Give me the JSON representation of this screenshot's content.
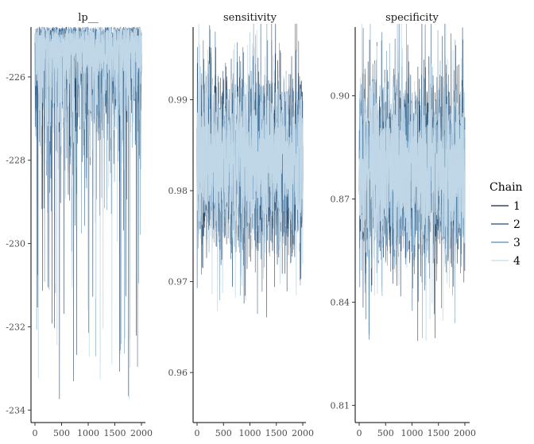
{
  "chart_data": [
    {
      "type": "line",
      "title": "lp__",
      "x_ticks": [
        0,
        500,
        1000,
        1500,
        2000
      ],
      "xlim": [
        0,
        2000
      ],
      "y_ticks": [
        -226,
        -228,
        -230,
        -232,
        -234
      ],
      "ylim": [
        -234.3,
        -224.8
      ],
      "trace": {
        "upper": -224.8,
        "center": -225.6,
        "spread": 0.7,
        "lower_tail": -233.8
      },
      "series": [
        {
          "name": "1",
          "color": "#0b2447"
        },
        {
          "name": "2",
          "color": "#1f4e79"
        },
        {
          "name": "3",
          "color": "#5b8bb0"
        },
        {
          "name": "4",
          "color": "#c6dbea"
        }
      ]
    },
    {
      "type": "line",
      "title": "sensitivity",
      "x_ticks": [
        0,
        500,
        1000,
        1500,
        2000
      ],
      "xlim": [
        0,
        2000
      ],
      "y_ticks": [
        0.99,
        0.98,
        0.97,
        0.96
      ],
      "y_tick_labels": [
        "0.99",
        "0.98",
        "0.97",
        "0.96"
      ],
      "ylim": [
        0.9545,
        0.998
      ],
      "trace": {
        "center": 0.9835,
        "spread": 0.0045,
        "upper_tail": 0.9975,
        "lower_tail": 0.9553
      },
      "series": [
        {
          "name": "1",
          "color": "#0b2447"
        },
        {
          "name": "2",
          "color": "#1f4e79"
        },
        {
          "name": "3",
          "color": "#5b8bb0"
        },
        {
          "name": "4",
          "color": "#c6dbea"
        }
      ]
    },
    {
      "type": "line",
      "title": "specificity",
      "x_ticks": [
        0,
        500,
        1000,
        1500,
        2000
      ],
      "xlim": [
        0,
        2000
      ],
      "y_ticks": [
        0.9,
        0.87,
        0.84,
        0.81
      ],
      "y_tick_labels": [
        "0.90",
        "0.87",
        "0.84",
        "0.81"
      ],
      "ylim": [
        0.805,
        0.92
      ],
      "trace": {
        "center": 0.8785,
        "spread": 0.0125,
        "upper_tail": 0.917,
        "lower_tail": 0.8105
      },
      "series": [
        {
          "name": "1",
          "color": "#0b2447"
        },
        {
          "name": "2",
          "color": "#1f4e79"
        },
        {
          "name": "3",
          "color": "#5b8bb0"
        },
        {
          "name": "4",
          "color": "#c6dbea"
        }
      ]
    }
  ],
  "legend": {
    "title": "Chain",
    "items": [
      {
        "label": "1",
        "color": "#0b2447"
      },
      {
        "label": "2",
        "color": "#1f4e79"
      },
      {
        "label": "3",
        "color": "#5b8bb0"
      },
      {
        "label": "4",
        "color": "#c6dbea"
      }
    ]
  }
}
